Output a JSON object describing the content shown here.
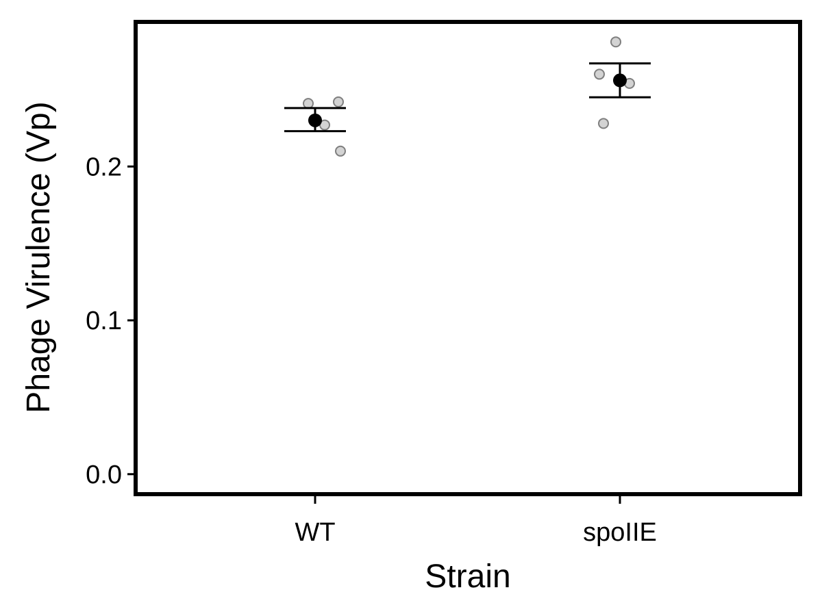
{
  "chart_data": {
    "type": "scatter",
    "title": "",
    "xlabel": "Strain",
    "ylabel": "Phage Virulence (Vp)",
    "categories": [
      "WT",
      "spoIIE"
    ],
    "ylim": [
      -0.013,
      0.294
    ],
    "yticks": [
      0.0,
      0.1,
      0.2
    ],
    "ytick_labels": [
      "0.0",
      "0.1",
      "0.2"
    ],
    "grid": false,
    "legend": "none",
    "replicates": [
      {
        "category": "WT",
        "values": [
          0.241,
          0.242,
          0.227,
          0.21
        ]
      },
      {
        "category": "spoIIE",
        "values": [
          0.281,
          0.26,
          0.254,
          0.228
        ]
      }
    ],
    "summary": [
      {
        "category": "WT",
        "mean": 0.23,
        "lower": 0.223,
        "upper": 0.238
      },
      {
        "category": "spoIIE",
        "mean": 0.256,
        "lower": 0.245,
        "upper": 0.267
      }
    ],
    "colors": {
      "replicate_fill": "#d3d3d3",
      "replicate_stroke": "#7f7f7f",
      "mean": "#000000",
      "axis": "#000000"
    }
  }
}
